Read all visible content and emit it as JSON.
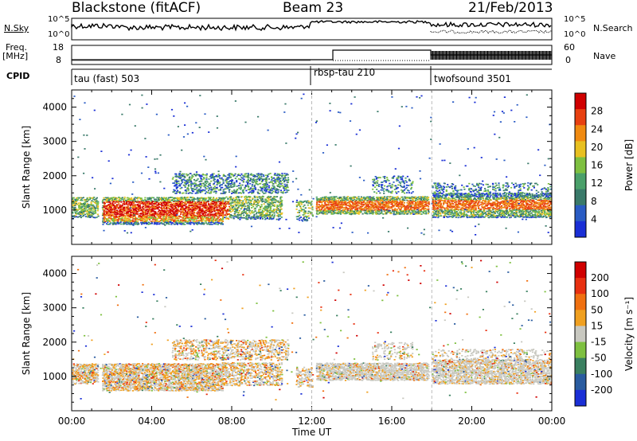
{
  "header": {
    "station": "Blackstone (fitACF)",
    "beam": "Beam 23",
    "date": "21/Feb/2013"
  },
  "left_labels": {
    "nsky": "N.Sky",
    "nsky_ticks": [
      "10^5",
      "10^0"
    ],
    "freq": "Freq.",
    "freq_unit": "[MHz]",
    "freq_ticks": [
      "18",
      "8"
    ],
    "cpid": "CPID"
  },
  "right_labels": {
    "nsearch": "N.Search",
    "nsearch_ticks": [
      "10^5",
      "10^0"
    ],
    "nave": "Nave",
    "nave_ticks": [
      "60",
      "0"
    ]
  },
  "cpid_segments": [
    {
      "label": "tau (fast) 503",
      "start_hour": 0
    },
    {
      "label": "rbsp-tau 210",
      "start_hour": 12
    },
    {
      "label": "twofsound 3501",
      "start_hour": 18
    }
  ],
  "chart_data": [
    {
      "type": "heatmap",
      "name": "power-panel",
      "ylabel": "Slant Range [km]",
      "xlim_hours": [
        0,
        24
      ],
      "ylim_km": [
        0,
        4500
      ],
      "yticks": [
        "1000",
        "2000",
        "3000",
        "4000"
      ],
      "xticks": [
        "00:00",
        "04:00",
        "08:00",
        "12:00",
        "16:00",
        "20:00",
        "00:00"
      ],
      "colorbar": {
        "label": "Power [dB]",
        "ticks": [
          "28",
          "24",
          "20",
          "16",
          "12",
          "8",
          "4"
        ],
        "colors": [
          "#1a2fd6",
          "#2a5cc4",
          "#3a7a6a",
          "#4aa06a",
          "#7ec040",
          "#e8c020",
          "#f08a10",
          "#e84010",
          "#d00000"
        ]
      }
    },
    {
      "type": "heatmap",
      "name": "velocity-panel",
      "ylabel": "Slant Range [km]",
      "xlabel": "Time UT",
      "xlim_hours": [
        0,
        24
      ],
      "ylim_km": [
        0,
        4500
      ],
      "yticks": [
        "1000",
        "2000",
        "3000",
        "4000"
      ],
      "xticks": [
        "00:00",
        "04:00",
        "08:00",
        "12:00",
        "16:00",
        "20:00",
        "00:00"
      ],
      "colorbar": {
        "label": "Velocity [m s⁻¹]",
        "ticks": [
          "200",
          "100",
          "50",
          "15",
          "-15",
          "-50",
          "-100",
          "-200"
        ],
        "colors": [
          "#1a2fd6",
          "#2a5ca0",
          "#3a8060",
          "#7ec040",
          "#c8c8c0",
          "#f0a020",
          "#f07010",
          "#e83010",
          "#d00000"
        ]
      }
    }
  ]
}
